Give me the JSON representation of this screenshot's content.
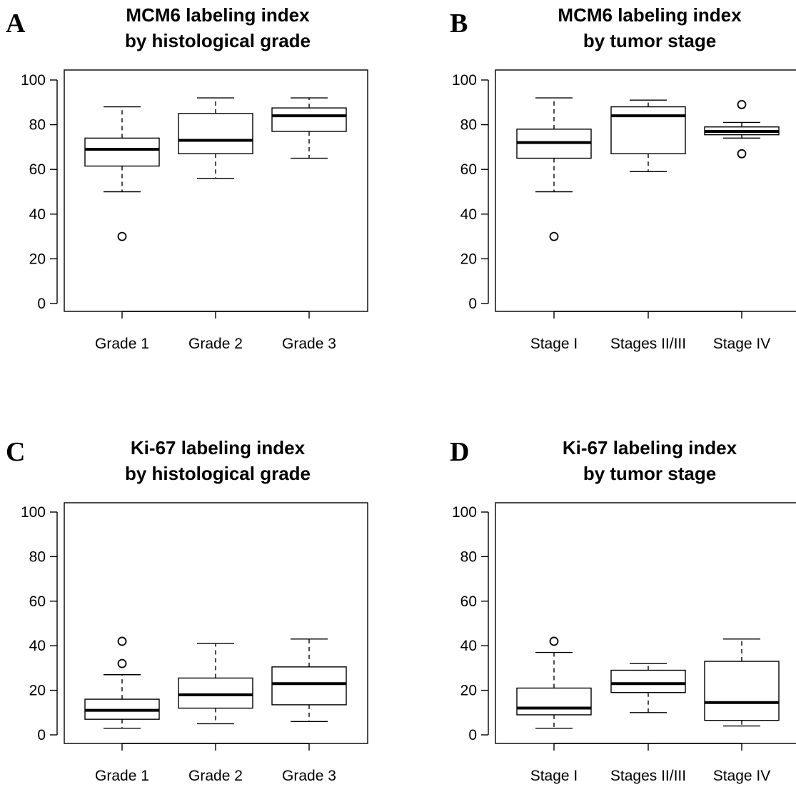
{
  "chart_data": [
    {
      "panel": "A",
      "type": "boxplot",
      "title": "MCM6 labeling index\nby histological grade",
      "categories": [
        "Grade 1",
        "Grade 2",
        "Grade 3"
      ],
      "ylim": [
        0,
        100
      ],
      "yticks": [
        0,
        20,
        40,
        60,
        80,
        100
      ],
      "boxes": [
        {
          "min": 50,
          "q1": 61.5,
          "median": 69,
          "q3": 74,
          "max": 88,
          "outliers": [
            30
          ]
        },
        {
          "min": 56,
          "q1": 67,
          "median": 73,
          "q3": 85,
          "max": 92,
          "outliers": []
        },
        {
          "min": 65,
          "q1": 77,
          "median": 84,
          "q3": 87.5,
          "max": 92,
          "outliers": []
        }
      ]
    },
    {
      "panel": "B",
      "type": "boxplot",
      "title": "MCM6 labeling index\nby tumor stage",
      "categories": [
        "Stage I",
        "Stages II/III",
        "Stage IV"
      ],
      "ylim": [
        0,
        100
      ],
      "yticks": [
        0,
        20,
        40,
        60,
        80,
        100
      ],
      "boxes": [
        {
          "min": 50,
          "q1": 65,
          "median": 72,
          "q3": 78,
          "max": 92,
          "outliers": [
            30
          ]
        },
        {
          "min": 59,
          "q1": 67,
          "median": 84,
          "q3": 88,
          "max": 91,
          "outliers": []
        },
        {
          "min": 74,
          "q1": 75.5,
          "median": 77,
          "q3": 79,
          "max": 81,
          "outliers": [
            89,
            67
          ]
        }
      ]
    },
    {
      "panel": "C",
      "type": "boxplot",
      "title": "Ki-67 labeling index\nby histological grade",
      "categories": [
        "Grade 1",
        "Grade 2",
        "Grade 3"
      ],
      "ylim": [
        0,
        100
      ],
      "yticks": [
        0,
        20,
        40,
        60,
        80,
        100
      ],
      "boxes": [
        {
          "min": 3,
          "q1": 7,
          "median": 11,
          "q3": 16,
          "max": 27,
          "outliers": [
            42,
            32
          ]
        },
        {
          "min": 5,
          "q1": 12,
          "median": 18,
          "q3": 25.5,
          "max": 41,
          "outliers": []
        },
        {
          "min": 6,
          "q1": 13.5,
          "median": 23,
          "q3": 30.5,
          "max": 43,
          "outliers": []
        }
      ]
    },
    {
      "panel": "D",
      "type": "boxplot",
      "title": "Ki-67 labeling index\nby tumor stage",
      "categories": [
        "Stage I",
        "Stages II/III",
        "Stage IV"
      ],
      "ylim": [
        0,
        100
      ],
      "yticks": [
        0,
        20,
        40,
        60,
        80,
        100
      ],
      "boxes": [
        {
          "min": 3,
          "q1": 9,
          "median": 12,
          "q3": 21,
          "max": 37,
          "outliers": [
            42
          ]
        },
        {
          "min": 10,
          "q1": 19,
          "median": 23,
          "q3": 29,
          "max": 32,
          "outliers": []
        },
        {
          "min": 4,
          "q1": 6.5,
          "median": 14.5,
          "q3": 33,
          "max": 43,
          "outliers": []
        }
      ]
    }
  ]
}
